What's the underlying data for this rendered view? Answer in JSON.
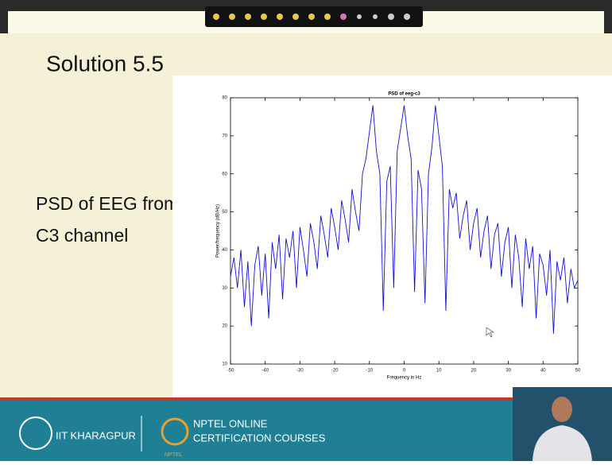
{
  "slide": {
    "title": "Solution 5.5",
    "caption_lines": [
      "PSD of EEG from",
      "C3 channel"
    ]
  },
  "footer": {
    "left": "IIT KHARAGPUR",
    "logo_label": "NPTEL",
    "right_lines": [
      "NPTEL ONLINE",
      "CERTIFICATION COURSES"
    ]
  },
  "chart_data": {
    "type": "line",
    "title": "PSD of eeg-c3",
    "x_label": "Frequency in Hz",
    "y_label": "Power/frequency (dB/Hz)",
    "color": "#1010e0",
    "grid": false,
    "xlim": [
      -50,
      50
    ],
    "xticks": [
      -50,
      -40,
      -30,
      -20,
      -10,
      0,
      10,
      20,
      30,
      40,
      50
    ],
    "ylim": [
      10,
      80
    ],
    "yticks": [
      10,
      20,
      30,
      40,
      50,
      60,
      70,
      80
    ],
    "x": [
      -50,
      -49,
      -48,
      -47,
      -46,
      -45,
      -44,
      -43,
      -42,
      -41,
      -40,
      -39,
      -38,
      -37,
      -36,
      -35,
      -34,
      -33,
      -32,
      -31,
      -30,
      -29,
      -28,
      -27,
      -26,
      -25,
      -24,
      -23,
      -22,
      -21,
      -20,
      -19,
      -18,
      -17,
      -16,
      -15,
      -14,
      -13,
      -12,
      -11,
      -10,
      -9,
      -8,
      -7,
      -6,
      -5,
      -4,
      -3,
      -2,
      -1,
      0,
      1,
      2,
      3,
      4,
      5,
      6,
      7,
      8,
      9,
      10,
      11,
      12,
      13,
      14,
      15,
      16,
      17,
      18,
      19,
      20,
      21,
      22,
      23,
      24,
      25,
      26,
      27,
      28,
      29,
      30,
      31,
      32,
      33,
      34,
      35,
      36,
      37,
      38,
      39,
      40,
      41,
      42,
      43,
      44,
      45,
      46,
      47,
      48,
      49,
      50
    ],
    "values": [
      33,
      38,
      30,
      40,
      25,
      37,
      20,
      36,
      41,
      28,
      39,
      22,
      42,
      35,
      44,
      27,
      43,
      38,
      45,
      30,
      46,
      40,
      33,
      47,
      42,
      35,
      49,
      44,
      38,
      51,
      46,
      40,
      53,
      48,
      42,
      56,
      50,
      45,
      60,
      64,
      71,
      78,
      66,
      60,
      24,
      58,
      62,
      30,
      66,
      72,
      78,
      70,
      64,
      29,
      61,
      56,
      26,
      60,
      67,
      78,
      70,
      62,
      24,
      56,
      51,
      55,
      43,
      49,
      53,
      40,
      47,
      51,
      38,
      45,
      49,
      35,
      44,
      47,
      33,
      42,
      46,
      30,
      44,
      38,
      25,
      43,
      35,
      41,
      22,
      39,
      36,
      28,
      40,
      18,
      37,
      32,
      38,
      26,
      35,
      30,
      32
    ]
  }
}
